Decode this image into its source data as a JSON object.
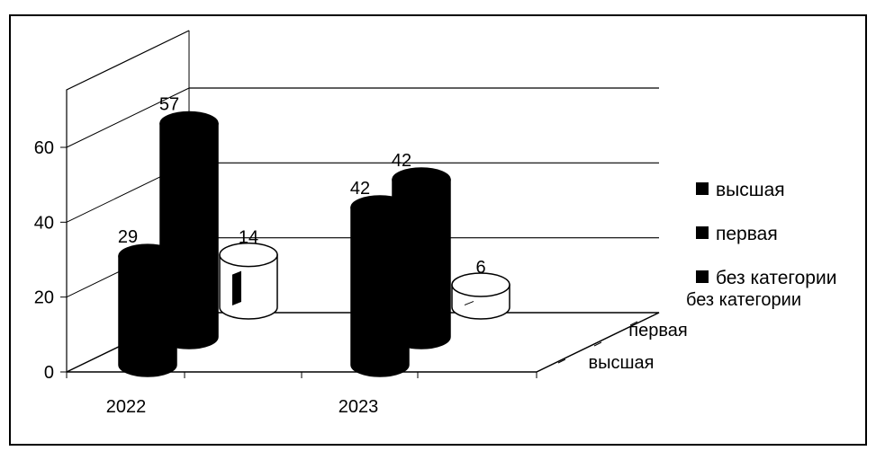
{
  "chart_data": {
    "type": "bar",
    "categories": [
      "2022",
      "2023"
    ],
    "depth_categories": [
      "высшая",
      "первая",
      "без категории"
    ],
    "series": [
      {
        "name": "высшая",
        "values": [
          29,
          42
        ]
      },
      {
        "name": "первая",
        "values": [
          57,
          42
        ]
      },
      {
        "name": "без категории",
        "values": [
          14,
          6
        ]
      }
    ],
    "ylim": [
      0,
      60
    ],
    "yticks": [
      "0",
      "20",
      "40",
      "60"
    ],
    "grid": true,
    "legend": "right",
    "colors": [
      "#000000",
      "#000000",
      "#ffffff"
    ]
  }
}
